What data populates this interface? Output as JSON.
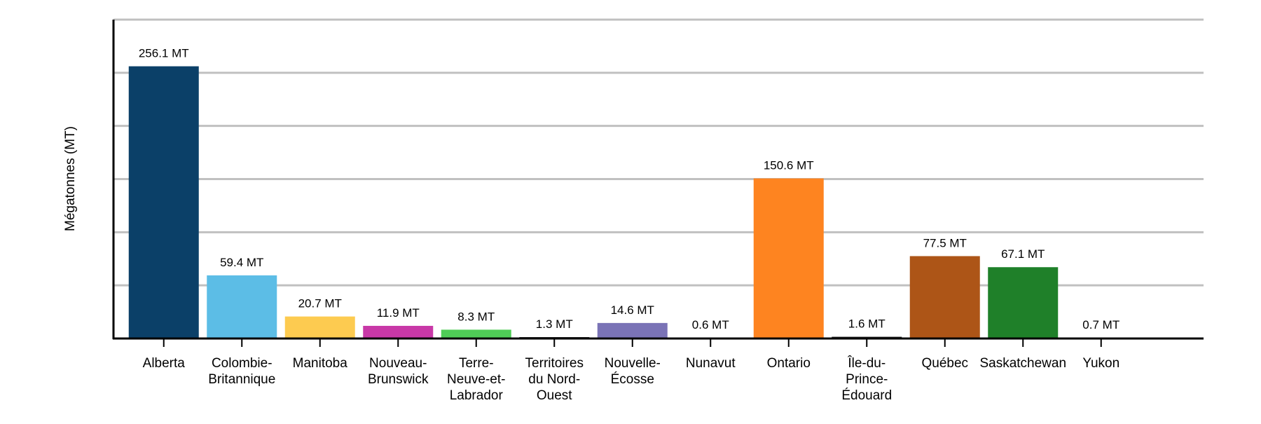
{
  "chart_data": {
    "type": "bar",
    "ylabel": "Mégatonnes (MT)",
    "xlabel": "",
    "ylim": [
      0,
      300
    ],
    "grid": true,
    "y_tick_labels_shown": false,
    "categories": [
      [
        "Alberta"
      ],
      [
        "Colombie-",
        "Britannique"
      ],
      [
        "Manitoba"
      ],
      [
        "Nouveau-",
        "Brunswick"
      ],
      [
        "Terre-",
        "Neuve-et-",
        "Labrador"
      ],
      [
        "Territoires",
        "du Nord-",
        "Ouest"
      ],
      [
        "Nouvelle-",
        "Écosse"
      ],
      [
        "Nunavut"
      ],
      [
        "Ontario"
      ],
      [
        "Île-du-",
        "Prince-",
        "Édouard"
      ],
      [
        "Québec"
      ],
      [
        "Saskatchewan"
      ],
      [
        "Yukon"
      ]
    ],
    "values": [
      256.1,
      59.4,
      20.7,
      11.9,
      8.3,
      1.3,
      14.6,
      0.6,
      150.6,
      1.6,
      77.5,
      67.1,
      0.7
    ],
    "data_labels": [
      "256.1 MT",
      "59.4 MT",
      "20.7 MT",
      "11.9 MT",
      "8.3 MT",
      "1.3 MT",
      "14.6 MT",
      "0.6 MT",
      "150.6 MT",
      "1.6 MT",
      "77.5 MT",
      "67.1 MT",
      "0.7 MT"
    ],
    "colors": [
      "#0b4068",
      "#5cbde6",
      "#fdcb50",
      "#c838a7",
      "#4fcc57",
      "#1a1a1a",
      "#7a73b6",
      "#1a1a1a",
      "#fe8420",
      "#1a1a1a",
      "#ad5517",
      "#1f8029",
      "#1a1a1a"
    ]
  }
}
